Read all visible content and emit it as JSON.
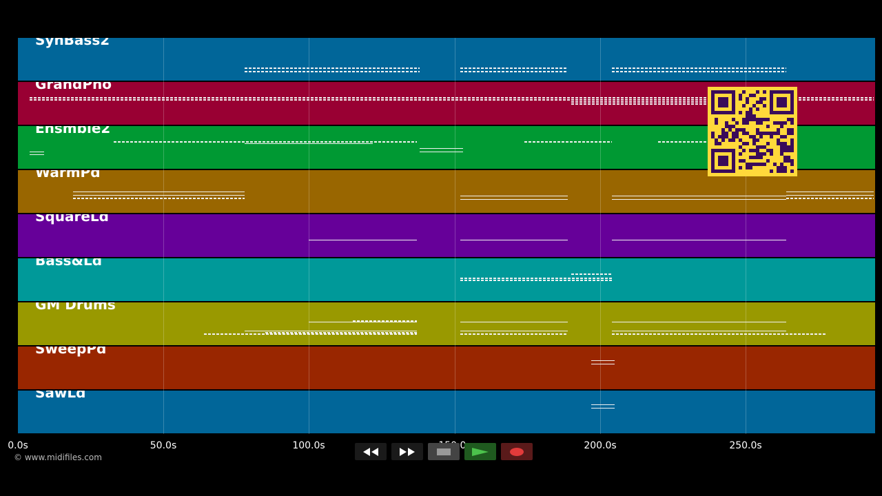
{
  "tracks": [
    {
      "name": "SynBass2",
      "color": "#016699"
    },
    {
      "name": "GrandPno",
      "color": "#990033"
    },
    {
      "name": "Ensmble2",
      "color": "#009933"
    },
    {
      "name": "WarmPd",
      "color": "#996600"
    },
    {
      "name": "SquareLd",
      "color": "#660099"
    },
    {
      "name": "Bass&Ld",
      "color": "#009999"
    },
    {
      "name": "GM Drums",
      "color": "#999900"
    },
    {
      "name": "SweepPd",
      "color": "#992600"
    },
    {
      "name": "SawLd",
      "color": "#016699"
    }
  ],
  "timeline": {
    "max_seconds": 294.5,
    "ticks": [
      "0.0s",
      "50.0s",
      "100.0s",
      "150.0s",
      "200.0s",
      "250.0s"
    ]
  },
  "notes": [
    {
      "track": 0,
      "start": 78,
      "end": 138,
      "pitch": 0.7,
      "dashed": true
    },
    {
      "track": 0,
      "start": 78,
      "end": 138,
      "pitch": 0.78,
      "dashed": true
    },
    {
      "track": 0,
      "start": 152,
      "end": 189,
      "pitch": 0.7,
      "dashed": true
    },
    {
      "track": 0,
      "start": 152,
      "end": 189,
      "pitch": 0.78,
      "dashed": true
    },
    {
      "track": 0,
      "start": 204,
      "end": 264,
      "pitch": 0.7,
      "dashed": true
    },
    {
      "track": 0,
      "start": 204,
      "end": 264,
      "pitch": 0.78,
      "dashed": true
    },
    {
      "track": 1,
      "start": 4,
      "end": 294,
      "pitch": 0.35,
      "dashed": true
    },
    {
      "track": 1,
      "start": 4,
      "end": 294,
      "pitch": 0.4,
      "dashed": true
    },
    {
      "track": 1,
      "start": 190,
      "end": 260,
      "pitch": 0.45,
      "dashed": true
    },
    {
      "track": 1,
      "start": 190,
      "end": 260,
      "pitch": 0.5,
      "dashed": true
    },
    {
      "track": 2,
      "start": 4,
      "end": 9,
      "pitch": 0.6,
      "dashed": false
    },
    {
      "track": 2,
      "start": 4,
      "end": 9,
      "pitch": 0.66,
      "dashed": false
    },
    {
      "track": 2,
      "start": 33,
      "end": 137,
      "pitch": 0.35,
      "dashed": true
    },
    {
      "track": 2,
      "start": 78,
      "end": 122,
      "pitch": 0.4,
      "dashed": false
    },
    {
      "track": 2,
      "start": 138,
      "end": 153,
      "pitch": 0.52,
      "dashed": false
    },
    {
      "track": 2,
      "start": 138,
      "end": 153,
      "pitch": 0.6,
      "dashed": false
    },
    {
      "track": 2,
      "start": 174,
      "end": 204,
      "pitch": 0.35,
      "dashed": true
    },
    {
      "track": 2,
      "start": 220,
      "end": 245,
      "pitch": 0.35,
      "dashed": true
    },
    {
      "track": 3,
      "start": 19,
      "end": 78,
      "pitch": 0.5,
      "dashed": false
    },
    {
      "track": 3,
      "start": 19,
      "end": 78,
      "pitch": 0.58,
      "dashed": false
    },
    {
      "track": 3,
      "start": 19,
      "end": 78,
      "pitch": 0.64,
      "dashed": true
    },
    {
      "track": 3,
      "start": 152,
      "end": 189,
      "pitch": 0.6,
      "dashed": false
    },
    {
      "track": 3,
      "start": 152,
      "end": 189,
      "pitch": 0.68,
      "dashed": false
    },
    {
      "track": 3,
      "start": 204,
      "end": 264,
      "pitch": 0.6,
      "dashed": false
    },
    {
      "track": 3,
      "start": 204,
      "end": 264,
      "pitch": 0.68,
      "dashed": false
    },
    {
      "track": 3,
      "start": 264,
      "end": 294,
      "pitch": 0.5,
      "dashed": false
    },
    {
      "track": 3,
      "start": 264,
      "end": 294,
      "pitch": 0.58,
      "dashed": false
    },
    {
      "track": 3,
      "start": 264,
      "end": 294,
      "pitch": 0.64,
      "dashed": true
    },
    {
      "track": 4,
      "start": 100,
      "end": 137,
      "pitch": 0.6,
      "dashed": false
    },
    {
      "track": 4,
      "start": 152,
      "end": 189,
      "pitch": 0.6,
      "dashed": false
    },
    {
      "track": 4,
      "start": 204,
      "end": 264,
      "pitch": 0.6,
      "dashed": false
    },
    {
      "track": 5,
      "start": 152,
      "end": 204,
      "pitch": 0.45,
      "dashed": true
    },
    {
      "track": 5,
      "start": 152,
      "end": 204,
      "pitch": 0.5,
      "dashed": true
    },
    {
      "track": 5,
      "start": 190,
      "end": 204,
      "pitch": 0.35,
      "dashed": true
    },
    {
      "track": 6,
      "start": 100,
      "end": 137,
      "pitch": 0.45,
      "dashed": false
    },
    {
      "track": 6,
      "start": 115,
      "end": 137,
      "pitch": 0.42,
      "dashed": true
    },
    {
      "track": 6,
      "start": 64,
      "end": 137,
      "pitch": 0.72,
      "dashed": true
    },
    {
      "track": 6,
      "start": 78,
      "end": 137,
      "pitch": 0.66,
      "dashed": false
    },
    {
      "track": 6,
      "start": 85,
      "end": 137,
      "pitch": 0.7,
      "dashed": true
    },
    {
      "track": 6,
      "start": 152,
      "end": 189,
      "pitch": 0.45,
      "dashed": false
    },
    {
      "track": 6,
      "start": 152,
      "end": 189,
      "pitch": 0.66,
      "dashed": false
    },
    {
      "track": 6,
      "start": 152,
      "end": 189,
      "pitch": 0.72,
      "dashed": true
    },
    {
      "track": 6,
      "start": 204,
      "end": 264,
      "pitch": 0.45,
      "dashed": false
    },
    {
      "track": 6,
      "start": 204,
      "end": 264,
      "pitch": 0.66,
      "dashed": false
    },
    {
      "track": 6,
      "start": 204,
      "end": 278,
      "pitch": 0.72,
      "dashed": true
    },
    {
      "track": 7,
      "start": 197,
      "end": 205,
      "pitch": 0.32,
      "dashed": false
    },
    {
      "track": 7,
      "start": 197,
      "end": 205,
      "pitch": 0.4,
      "dashed": false
    },
    {
      "track": 8,
      "start": 197,
      "end": 205,
      "pitch": 0.32,
      "dashed": false
    },
    {
      "track": 8,
      "start": 197,
      "end": 205,
      "pitch": 0.4,
      "dashed": false
    }
  ],
  "transport": {
    "rewind": "rewind-icon",
    "fast_forward": "fast-forward-icon",
    "stop": "stop-icon",
    "play": "play-icon",
    "record": "record-icon"
  },
  "copyright": "© www.midifiles.com",
  "qr_code": "qr-code"
}
